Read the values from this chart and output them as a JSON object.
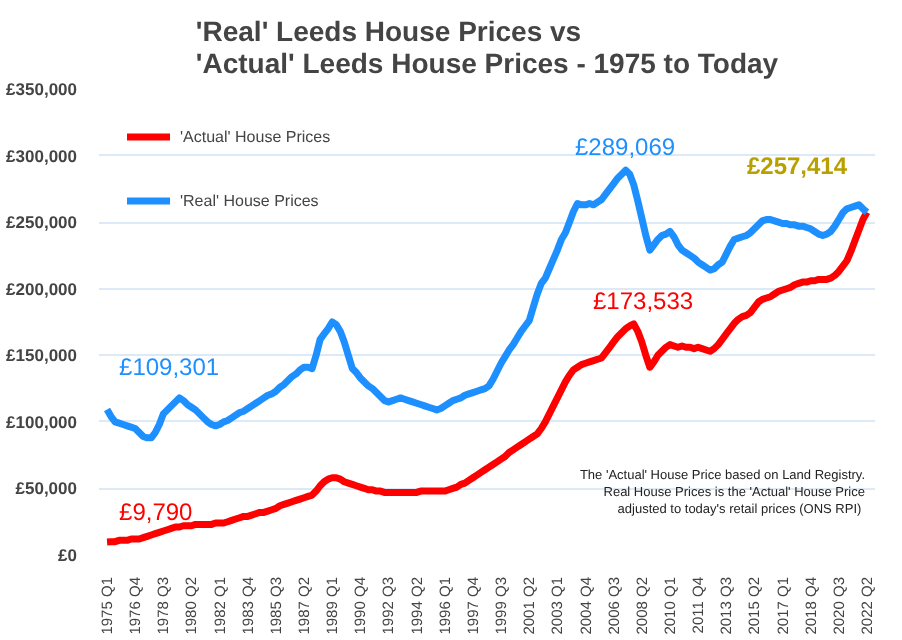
{
  "chart_data": {
    "type": "line",
    "title": "'Real' Leeds House Prices vs\n'Actual' Leeds House Prices - 1975 to Today",
    "categories": [
      "1975 Q1",
      null,
      null,
      null,
      null,
      null,
      null,
      "1976 Q4",
      null,
      null,
      null,
      null,
      null,
      null,
      "1978 Q3",
      null,
      null,
      null,
      null,
      null,
      null,
      "1980 Q2",
      null,
      null,
      null,
      null,
      null,
      null,
      "1982 Q1",
      null,
      null,
      null,
      null,
      null,
      null,
      "1983 Q4",
      null,
      null,
      null,
      null,
      null,
      null,
      "1985 Q3",
      null,
      null,
      null,
      null,
      null,
      null,
      "1987 Q2",
      null,
      null,
      null,
      null,
      null,
      null,
      "1989 Q1",
      null,
      null,
      null,
      null,
      null,
      null,
      "1990 Q4",
      null,
      null,
      null,
      null,
      null,
      null,
      "1992 Q3",
      null,
      null,
      null,
      null,
      null,
      null,
      "1994 Q2",
      null,
      null,
      null,
      null,
      null,
      null,
      "1996 Q1",
      null,
      null,
      null,
      null,
      null,
      null,
      "1997 Q4",
      null,
      null,
      null,
      null,
      null,
      null,
      "1999 Q3",
      null,
      null,
      null,
      null,
      null,
      null,
      "2001 Q2",
      null,
      null,
      null,
      null,
      null,
      null,
      "2003 Q1",
      null,
      null,
      null,
      null,
      null,
      null,
      "2004 Q4",
      null,
      null,
      null,
      null,
      null,
      null,
      "2006 Q3",
      null,
      null,
      null,
      null,
      null,
      null,
      "2008 Q2",
      null,
      null,
      null,
      null,
      null,
      null,
      "2010 Q1",
      null,
      null,
      null,
      null,
      null,
      null,
      "2011 Q4",
      null,
      null,
      null,
      null,
      null,
      null,
      "2013 Q3",
      null,
      null,
      null,
      null,
      null,
      null,
      "2015 Q2",
      null,
      null,
      null,
      null,
      null,
      null,
      "2017 Q1",
      null,
      null,
      null,
      null,
      null,
      null,
      "2018 Q4",
      null,
      null,
      null,
      null,
      null,
      null,
      "2020 Q3",
      null,
      null,
      null,
      null,
      null,
      null,
      "2022 Q2"
    ],
    "ylim": [
      0,
      350000
    ],
    "yticks": [
      {
        "value": 0,
        "label": "£0"
      },
      {
        "value": 50000,
        "label": "£50,000"
      },
      {
        "value": 100000,
        "label": "£100,000"
      },
      {
        "value": 150000,
        "label": "£150,000"
      },
      {
        "value": 200000,
        "label": "£200,000"
      },
      {
        "value": 250000,
        "label": "£250,000"
      },
      {
        "value": 300000,
        "label": "£300,000"
      },
      {
        "value": 350000,
        "label": "£350,000"
      }
    ],
    "grid": "y",
    "legend": "top left",
    "line_style": "solid",
    "series": [
      {
        "name": "'Actual' House Prices",
        "color": "#ff0000",
        "values": [
          9790,
          10000,
          10000,
          11000,
          11000,
          11000,
          12000,
          12000,
          12000,
          13000,
          14000,
          15000,
          16000,
          17000,
          18000,
          19000,
          20000,
          21000,
          21000,
          22000,
          22000,
          22000,
          23000,
          23000,
          23000,
          23000,
          23000,
          24000,
          24000,
          24000,
          25000,
          26000,
          27000,
          28000,
          29000,
          29000,
          30000,
          31000,
          32000,
          32000,
          33000,
          34000,
          35000,
          37000,
          38000,
          39000,
          40000,
          41000,
          42000,
          43000,
          44000,
          45000,
          48000,
          52000,
          55000,
          57000,
          58000,
          58000,
          57000,
          55000,
          54000,
          53000,
          52000,
          51000,
          50000,
          49000,
          49000,
          48000,
          48000,
          47000,
          47000,
          47000,
          47000,
          47000,
          47000,
          47000,
          47000,
          47000,
          48000,
          48000,
          48000,
          48000,
          48000,
          48000,
          48000,
          49000,
          50000,
          51000,
          53000,
          54000,
          56000,
          58000,
          60000,
          62000,
          64000,
          66000,
          68000,
          70000,
          72000,
          74000,
          77000,
          79000,
          81000,
          83000,
          85000,
          87000,
          89000,
          91000,
          95000,
          100000,
          106000,
          112000,
          118000,
          124000,
          130000,
          135000,
          139000,
          141000,
          143000,
          144000,
          145000,
          146000,
          147000,
          148000,
          152000,
          156000,
          160000,
          164000,
          167000,
          170000,
          172000,
          173533,
          168000,
          160000,
          150000,
          141000,
          145000,
          150000,
          153000,
          156000,
          158000,
          157000,
          156000,
          157000,
          156000,
          156000,
          155000,
          156000,
          155000,
          154000,
          153000,
          155000,
          158000,
          162000,
          166000,
          170000,
          174000,
          177000,
          179000,
          180000,
          182000,
          186000,
          190000,
          192000,
          193000,
          194000,
          196000,
          198000,
          199000,
          200000,
          201000,
          203000,
          204000,
          205000,
          205000,
          206000,
          206000,
          207000,
          207000,
          207000,
          208000,
          210000,
          213000,
          217000,
          221000,
          228000,
          236000,
          244000,
          252000,
          257414
        ]
      },
      {
        "name": "'Real' House Prices",
        "color": "#1e8fff",
        "values": [
          109301,
          104000,
          100000,
          99000,
          98000,
          97000,
          96000,
          95000,
          92000,
          89000,
          88000,
          88000,
          92000,
          98000,
          106000,
          109000,
          112000,
          115000,
          118000,
          116000,
          113000,
          111000,
          109000,
          106000,
          103000,
          100000,
          98000,
          97000,
          98000,
          100000,
          101000,
          103000,
          105000,
          107000,
          108000,
          110000,
          112000,
          114000,
          116000,
          118000,
          120000,
          121000,
          123000,
          126000,
          128000,
          131000,
          134000,
          136000,
          139000,
          141000,
          141000,
          140000,
          150000,
          162000,
          166000,
          170000,
          175000,
          173000,
          168000,
          160000,
          150000,
          140000,
          137000,
          133000,
          130000,
          127000,
          125000,
          122000,
          119000,
          116000,
          115000,
          116000,
          117000,
          118000,
          117000,
          116000,
          115000,
          114000,
          113000,
          112000,
          111000,
          110000,
          109000,
          110000,
          112000,
          114000,
          116000,
          117000,
          118000,
          120000,
          121000,
          122000,
          123000,
          124000,
          125000,
          127000,
          132000,
          138000,
          144000,
          149000,
          154000,
          158000,
          163000,
          168000,
          172000,
          176000,
          186000,
          196000,
          204000,
          208000,
          215000,
          222000,
          229000,
          237000,
          242000,
          250000,
          258000,
          264000,
          263000,
          263000,
          264000,
          263000,
          265000,
          267000,
          271000,
          275000,
          279000,
          283000,
          286000,
          289069,
          286000,
          278000,
          266000,
          253000,
          240000,
          229000,
          233000,
          237000,
          240000,
          241000,
          243000,
          239000,
          233000,
          229000,
          227000,
          225000,
          223000,
          220000,
          218000,
          216000,
          214000,
          215000,
          218000,
          220000,
          226000,
          232000,
          237000,
          238000,
          239000,
          240000,
          242000,
          245000,
          248000,
          251000,
          252000,
          252000,
          251000,
          250000,
          249000,
          249000,
          248000,
          248000,
          247000,
          247000,
          246000,
          245000,
          243000,
          241000,
          240000,
          241000,
          243000,
          247000,
          252000,
          257000,
          260000,
          261000,
          262000,
          263000,
          260000,
          257414
        ]
      }
    ],
    "annotations": [
      {
        "text": "£109,301",
        "x": "1975 Q1",
        "y": 109301
      },
      {
        "text": "£9,790",
        "x": "1975 Q1",
        "y": 9790
      },
      "£289,069",
      "£173,533",
      {
        "text": "£257,414",
        "x": "2022 Q2",
        "y": 257414
      },
      "The 'Actual' House Price based on Land Registry.\nReal House Prices is the 'Actual' House Price\nadjusted  to today's retail prices (ONS RPI)"
    ]
  }
}
